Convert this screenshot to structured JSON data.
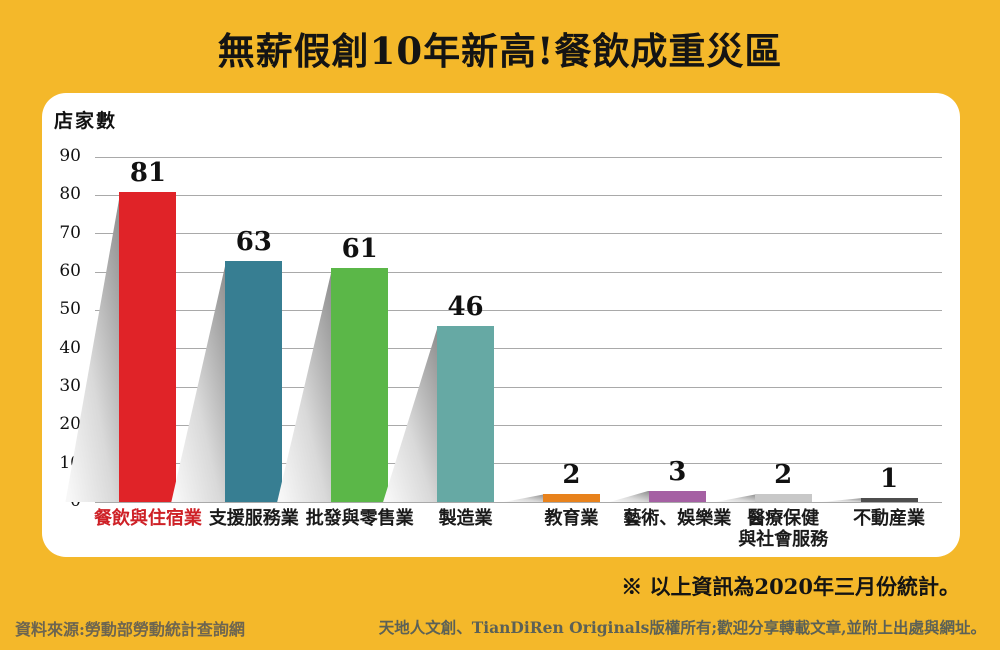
{
  "title": "無薪假創10年新高!餐飲成重災區",
  "note": "※ 以上資訊為2020年三月份統計。",
  "footer": {
    "source": "資料來源:勞動部勞動統計查詢網",
    "copyright": "天地人文創、TianDiRen Originals版權所有;歡迎分享轉載文章,並附上出處與網址。"
  },
  "colors": {
    "background": "#F4B82A",
    "panel": "#FFFFFF",
    "grid": "#A9A9A9",
    "highlight_label": "#CE2127"
  },
  "chart_data": {
    "type": "bar",
    "title": "無薪假創10年新高!餐飲成重災區",
    "ylabel": "店家數",
    "xlabel": "",
    "ylim": [
      0,
      90
    ],
    "ytick_interval": 10,
    "grid": true,
    "legend": "none",
    "categories": [
      "餐飲與住宿業",
      "支援服務業",
      "批發與零售業",
      "製造業",
      "教育業",
      "藝術、娛樂業",
      "醫療保健\n與社會服務",
      "不動産業"
    ],
    "values": [
      81,
      63,
      61,
      46,
      2,
      3,
      2,
      1
    ],
    "bar_colors": [
      "#E02328",
      "#377E92",
      "#5BB748",
      "#66A9A4",
      "#E8821C",
      "#A560A3",
      "#C8C8C8",
      "#4E4E4E"
    ],
    "label_colors": [
      "#CE2127",
      "#1A1A1A",
      "#1A1A1A",
      "#1A1A1A",
      "#1A1A1A",
      "#1A1A1A",
      "#1A1A1A",
      "#1A1A1A"
    ]
  }
}
